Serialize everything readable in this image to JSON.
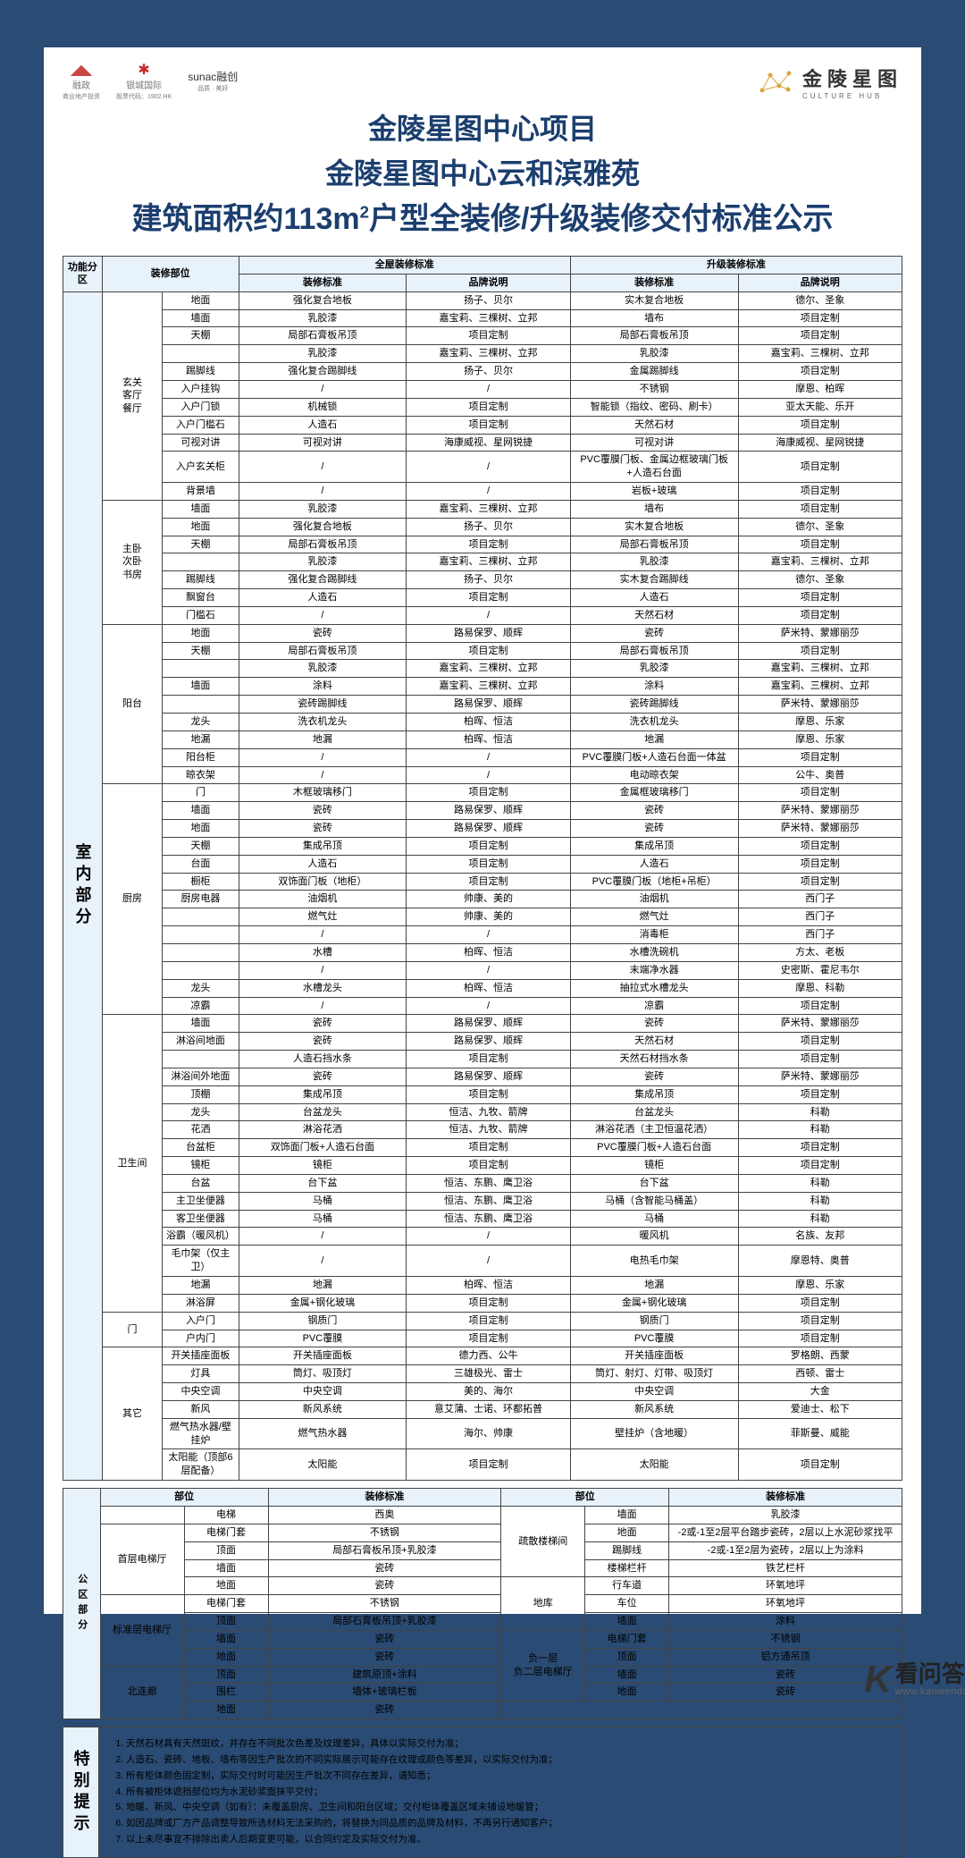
{
  "logos": {
    "left": [
      {
        "name": "融政",
        "sub": "商业地产投资"
      },
      {
        "name": "银城国际",
        "sub": "股票代码：1902.HK"
      },
      {
        "name": "sunac融创",
        "sub": "品质 · 美好"
      }
    ],
    "right": {
      "brand": "金陵星图",
      "sub": "CULTURE HUB"
    }
  },
  "title": {
    "l1": "金陵星图中心项目",
    "l2": "金陵星图中心云和滨雅苑",
    "l3": "建筑面积约113m²户型全装修/升级装修交付标准公示"
  },
  "headers": {
    "func": "功能分区",
    "part": "装修部位",
    "full": "全屋装修标准",
    "up": "升级装修标准",
    "std": "装修标准",
    "brand": "品牌说明"
  },
  "section1": {
    "label": "室内部分",
    "groups": [
      {
        "room": "玄关\n客厅\n餐厅",
        "rows": [
          [
            "地面",
            "",
            "强化复合地板",
            "扬子、贝尔",
            "实木复合地板",
            "德尔、圣象"
          ],
          [
            "墙面",
            "",
            "乳胶漆",
            "嘉宝莉、三棵树、立邦",
            "墙布",
            "项目定制"
          ],
          [
            "天棚",
            "",
            "局部石膏板吊顶",
            "项目定制",
            "局部石膏板吊顶",
            "项目定制"
          ],
          [
            "",
            "",
            "乳胶漆",
            "嘉宝莉、三棵树、立邦",
            "乳胶漆",
            "嘉宝莉、三棵树、立邦"
          ],
          [
            "踢脚线",
            "",
            "强化复合踢脚线",
            "扬子、贝尔",
            "金属踢脚线",
            "项目定制"
          ],
          [
            "入户挂钩",
            "",
            "/",
            "/",
            "不锈钢",
            "摩恩、柏晖"
          ],
          [
            "入户门锁",
            "",
            "机械锁",
            "项目定制",
            "智能锁（指纹、密码、刷卡）",
            "亚太天能、乐开"
          ],
          [
            "入户门槛石",
            "",
            "人造石",
            "项目定制",
            "天然石材",
            "项目定制"
          ],
          [
            "可视对讲",
            "",
            "可视对讲",
            "海康威视、星网锐捷",
            "可视对讲",
            "海康威视、星网锐捷"
          ],
          [
            "入户玄关柜",
            "",
            "/",
            "/",
            "PVC覆膜门板、金属边框玻璃门板+人造石台面",
            "项目定制"
          ],
          [
            "背景墙",
            "",
            "/",
            "/",
            "岩板+玻璃",
            "项目定制"
          ]
        ]
      },
      {
        "room": "主卧\n次卧\n书房",
        "rows": [
          [
            "墙面",
            "",
            "乳胶漆",
            "嘉宝莉、三棵树、立邦",
            "墙布",
            "项目定制"
          ],
          [
            "地面",
            "",
            "强化复合地板",
            "扬子、贝尔",
            "实木复合地板",
            "德尔、圣象"
          ],
          [
            "天棚",
            "",
            "局部石膏板吊顶",
            "项目定制",
            "局部石膏板吊顶",
            "项目定制"
          ],
          [
            "",
            "",
            "乳胶漆",
            "嘉宝莉、三棵树、立邦",
            "乳胶漆",
            "嘉宝莉、三棵树、立邦"
          ],
          [
            "踢脚线",
            "",
            "强化复合踢脚线",
            "扬子、贝尔",
            "实木复合踢脚线",
            "德尔、圣象"
          ],
          [
            "飘窗台",
            "",
            "人造石",
            "项目定制",
            "人造石",
            "项目定制"
          ],
          [
            "门槛石",
            "",
            "/",
            "/",
            "天然石材",
            "项目定制"
          ]
        ]
      },
      {
        "room": "阳台",
        "rows": [
          [
            "地面",
            "",
            "瓷砖",
            "路易保罗、顺辉",
            "瓷砖",
            "萨米特、蒙娜丽莎"
          ],
          [
            "天棚",
            "",
            "局部石膏板吊顶",
            "项目定制",
            "局部石膏板吊顶",
            "项目定制"
          ],
          [
            "",
            "",
            "乳胶漆",
            "嘉宝莉、三棵树、立邦",
            "乳胶漆",
            "嘉宝莉、三棵树、立邦"
          ],
          [
            "墙面",
            "",
            "涂料",
            "嘉宝莉、三棵树、立邦",
            "涂料",
            "嘉宝莉、三棵树、立邦"
          ],
          [
            "",
            "",
            "瓷砖踢脚线",
            "路易保罗、顺辉",
            "瓷砖踢脚线",
            "萨米特、蒙娜丽莎"
          ],
          [
            "龙头",
            "",
            "洗衣机龙头",
            "柏晖、恒洁",
            "洗衣机龙头",
            "摩恩、乐家"
          ],
          [
            "地漏",
            "",
            "地漏",
            "柏晖、恒洁",
            "地漏",
            "摩恩、乐家"
          ],
          [
            "阳台柜",
            "",
            "/",
            "/",
            "PVC覆膜门板+人造石台面一体盆",
            "项目定制"
          ],
          [
            "晾衣架",
            "",
            "/",
            "/",
            "电动晾衣架",
            "公牛、奥普"
          ]
        ]
      },
      {
        "room": "厨房",
        "rows": [
          [
            "门",
            "",
            "木框玻璃移门",
            "项目定制",
            "金属框玻璃移门",
            "项目定制"
          ],
          [
            "墙面",
            "",
            "瓷砖",
            "路易保罗、顺辉",
            "瓷砖",
            "萨米特、蒙娜丽莎"
          ],
          [
            "地面",
            "",
            "瓷砖",
            "路易保罗、顺辉",
            "瓷砖",
            "萨米特、蒙娜丽莎"
          ],
          [
            "天棚",
            "",
            "集成吊顶",
            "项目定制",
            "集成吊顶",
            "项目定制"
          ],
          [
            "台面",
            "",
            "人造石",
            "项目定制",
            "人造石",
            "项目定制"
          ],
          [
            "橱柜",
            "",
            "双饰面门板（地柜）",
            "项目定制",
            "PVC覆膜门板（地柜+吊柜）",
            "项目定制"
          ],
          [
            "厨房电器",
            "",
            "油烟机",
            "帅康、美的",
            "油烟机",
            "西门子"
          ],
          [
            "",
            "",
            "燃气灶",
            "帅康、美的",
            "燃气灶",
            "西门子"
          ],
          [
            "",
            "",
            "/",
            "/",
            "消毒柜",
            "西门子"
          ],
          [
            "",
            "",
            "水槽",
            "柏晖、恒洁",
            "水槽洗碗机",
            "方太、老板"
          ],
          [
            "",
            "",
            "/",
            "/",
            "末端净水器",
            "史密斯、霍尼韦尔"
          ],
          [
            "龙头",
            "",
            "水槽龙头",
            "柏晖、恒洁",
            "抽拉式水槽龙头",
            "摩恩、科勒"
          ],
          [
            "凉霸",
            "",
            "/",
            "/",
            "凉霸",
            "项目定制"
          ]
        ]
      },
      {
        "room": "卫生间",
        "rows": [
          [
            "墙面",
            "",
            "瓷砖",
            "路易保罗、顺辉",
            "瓷砖",
            "萨米特、蒙娜丽莎"
          ],
          [
            "淋浴间地面",
            "",
            "瓷砖",
            "路易保罗、顺辉",
            "天然石材",
            "项目定制"
          ],
          [
            "",
            "",
            "人造石挡水条",
            "项目定制",
            "天然石材挡水条",
            "项目定制"
          ],
          [
            "淋浴间外地面",
            "",
            "瓷砖",
            "路易保罗、顺辉",
            "瓷砖",
            "萨米特、蒙娜丽莎"
          ],
          [
            "顶棚",
            "",
            "集成吊顶",
            "项目定制",
            "集成吊顶",
            "项目定制"
          ],
          [
            "龙头",
            "",
            "台盆龙头",
            "恒洁、九牧、箭牌",
            "台盆龙头",
            "科勒"
          ],
          [
            "花洒",
            "",
            "淋浴花洒",
            "恒洁、九牧、箭牌",
            "淋浴花洒（主卫恒温花洒）",
            "科勒"
          ],
          [
            "台盆柜",
            "",
            "双饰面门板+人造石台面",
            "项目定制",
            "PVC覆膜门板+人造石台面",
            "项目定制"
          ],
          [
            "镜柜",
            "",
            "镜柜",
            "项目定制",
            "镜柜",
            "项目定制"
          ],
          [
            "台盆",
            "",
            "台下盆",
            "恒洁、东鹏、鹰卫浴",
            "台下盆",
            "科勒"
          ],
          [
            "主卫坐便器",
            "",
            "马桶",
            "恒洁、东鹏、鹰卫浴",
            "马桶（含智能马桶盖）",
            "科勒"
          ],
          [
            "客卫坐便器",
            "",
            "马桶",
            "恒洁、东鹏、鹰卫浴",
            "马桶",
            "科勒"
          ],
          [
            "浴霸（暖风机）",
            "",
            "/",
            "/",
            "暖风机",
            "名族、友邦"
          ],
          [
            "毛巾架（仅主卫）",
            "",
            "/",
            "/",
            "电热毛巾架",
            "摩恩特、奥普"
          ],
          [
            "地漏",
            "",
            "地漏",
            "柏晖、恒洁",
            "地漏",
            "摩恩、乐家"
          ],
          [
            "淋浴屏",
            "",
            "金属+钢化玻璃",
            "项目定制",
            "金属+钢化玻璃",
            "项目定制"
          ]
        ]
      },
      {
        "room": "门",
        "rows": [
          [
            "入户门",
            "",
            "钢质门",
            "项目定制",
            "钢质门",
            "项目定制"
          ],
          [
            "户内门",
            "",
            "PVC覆膜",
            "项目定制",
            "PVC覆膜",
            "项目定制"
          ]
        ]
      },
      {
        "room": "其它",
        "rows": [
          [
            "开关插座面板",
            "",
            "开关插座面板",
            "德力西、公牛",
            "开关插座面板",
            "罗格朗、西蒙"
          ],
          [
            "灯具",
            "",
            "筒灯、吸顶灯",
            "三雄极光、雷士",
            "筒灯、射灯、灯带、吸顶灯",
            "西顿、雷士"
          ],
          [
            "中央空调",
            "",
            "中央空调",
            "美的、海尔",
            "中央空调",
            "大金"
          ],
          [
            "新风",
            "",
            "新风系统",
            "意艾蒲、士诺、环都拓普",
            "新风系统",
            "爱迪士、松下"
          ],
          [
            "燃气热水器/壁挂炉",
            "",
            "燃气热水器",
            "海尔、帅康",
            "壁挂炉（含地暖）",
            "菲斯曼、威能"
          ],
          [
            "太阳能（顶部6层配备）",
            "",
            "太阳能",
            "项目定制",
            "太阳能",
            "项目定制"
          ]
        ]
      }
    ]
  },
  "section2": {
    "label": "公区部分",
    "headerL": {
      "part": "部位",
      "std": "装修标准"
    },
    "headerR": {
      "part": "部位",
      "std": "装修标准"
    },
    "left": [
      {
        "room": "",
        "rows": [
          [
            "电梯",
            "西奥"
          ]
        ]
      },
      {
        "room": "首层电梯厅",
        "rows": [
          [
            "电梯门套",
            "不锈钢"
          ],
          [
            "顶面",
            "局部石膏板吊顶+乳胶漆"
          ],
          [
            "墙面",
            "瓷砖"
          ],
          [
            "地面",
            "瓷砖"
          ]
        ]
      },
      {
        "room": "标准层电梯厅",
        "rows": [
          [
            "电梯门套",
            "不锈钢"
          ],
          [
            "顶面",
            "局部石膏板吊顶+乳胶漆"
          ],
          [
            "墙面",
            "瓷砖"
          ],
          [
            "地面",
            "瓷砖"
          ]
        ]
      },
      {
        "room": "北连廊",
        "rows": [
          [
            "顶面",
            "建筑原顶+涂料"
          ],
          [
            "围栏",
            "墙体+玻璃栏板"
          ],
          [
            "地面",
            "瓷砖"
          ]
        ]
      }
    ],
    "right": [
      {
        "room": "疏散楼梯间",
        "rows": [
          [
            "墙面",
            "乳胶漆"
          ],
          [
            "地面",
            "-2或-1至2层平台踏步瓷砖，2层以上水泥砂浆找平"
          ],
          [
            "踢脚线",
            "-2或-1至2层为瓷砖，2层以上为涂料"
          ],
          [
            "楼梯栏杆",
            "铁艺栏杆"
          ]
        ]
      },
      {
        "room": "地库",
        "rows": [
          [
            "行车道",
            "环氧地坪"
          ],
          [
            "车位",
            "环氧地坪"
          ],
          [
            "墙面",
            "涂料"
          ]
        ]
      },
      {
        "room": "负一层\n负二层电梯厅",
        "rows": [
          [
            "电梯门套",
            "不锈钢"
          ],
          [
            "顶面",
            "铝方通吊顶"
          ],
          [
            "墙面",
            "瓷砖"
          ],
          [
            "地面",
            "瓷砖"
          ]
        ]
      }
    ]
  },
  "section3": {
    "label": "特别提示",
    "notes": [
      "天然石材具有天然斑纹，并存在不同批次色差及纹理差异，具体以实际交付为准；",
      "人造石、瓷砖、地板、墙布等因生产批次的不同实际展示可能存在纹理或颜色等差异，以实际交付为准；",
      "所有柜体颜色固定制，实际交付时可能因生产批次不同存在差异，请知悉；",
      "所有被柜体遮挡部位均为水泥砂浆面抹平交付；",
      "地暖、新风、中央空调（如有）：未覆盖厨房、卫生间和阳台区域；交付柜体覆盖区域未铺设地暖管；",
      "如因品牌或厂方产品调整导致所选材料无法采购的，将替换为同品质的品牌及材料，不再另行通知客户；",
      "以上未尽事宜不排除出卖人后期变更可能，以合同约定及实际交付为准。"
    ]
  },
  "watermark": {
    "k": "K",
    "name": "看问答",
    "url": "www.kanwenda.com"
  }
}
